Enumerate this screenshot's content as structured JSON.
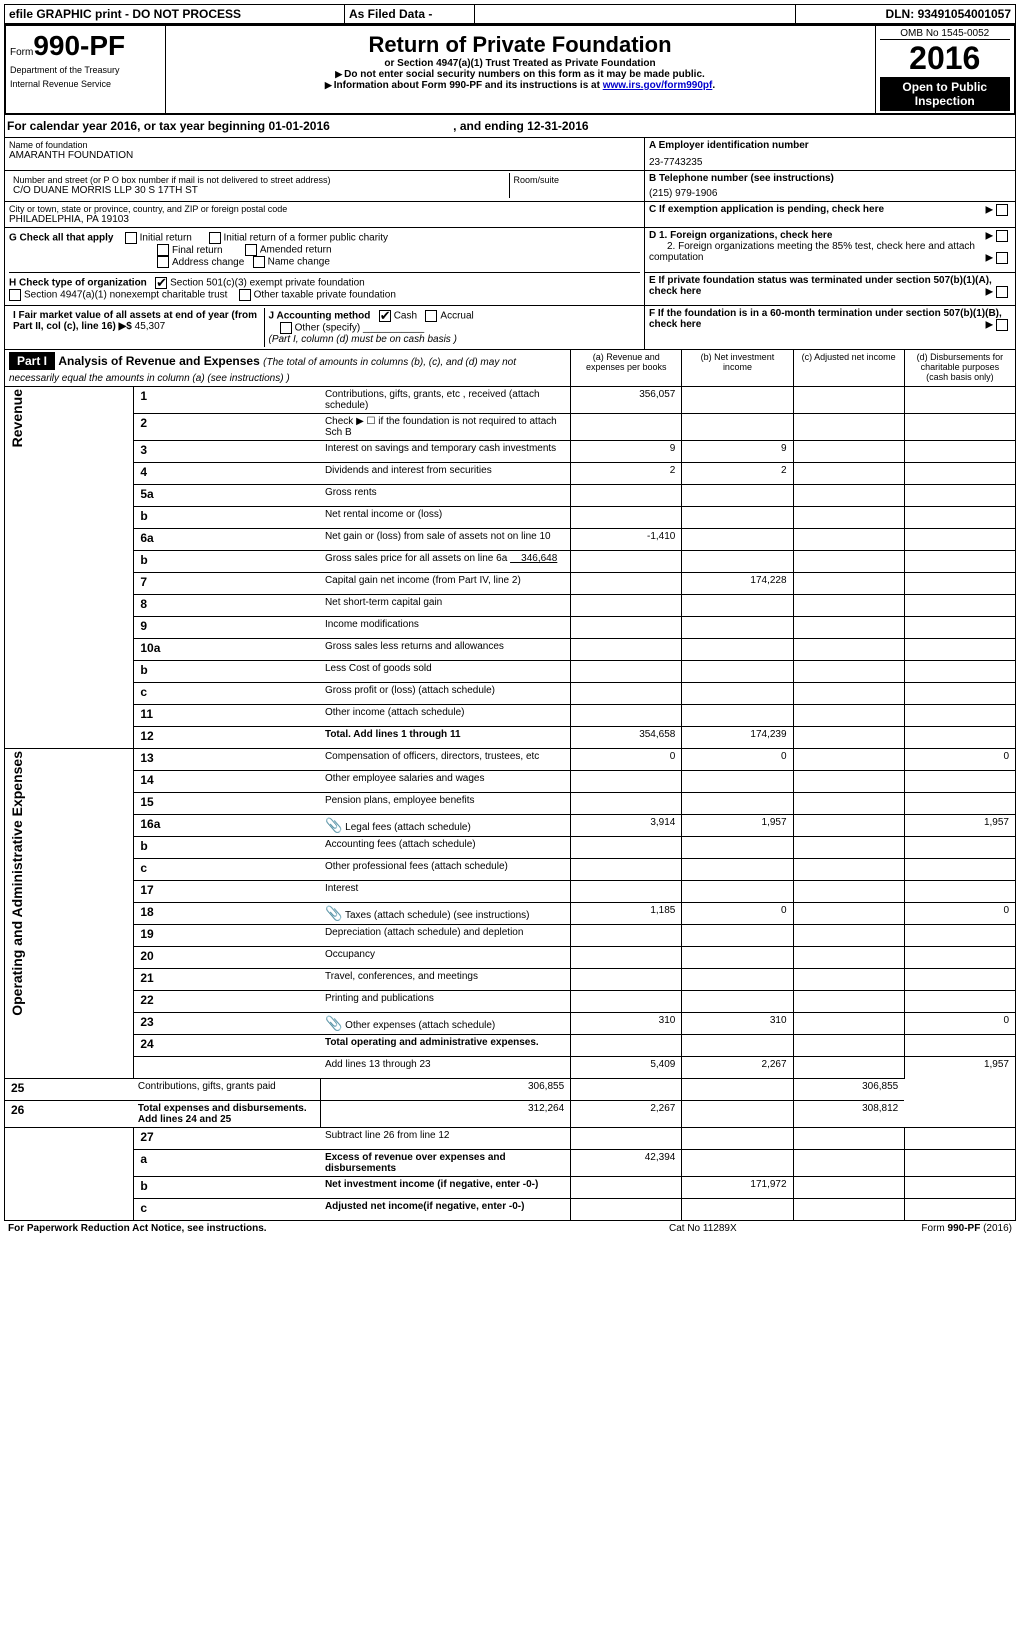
{
  "topbar": {
    "efile": "efile GRAPHIC print - DO NOT PROCESS",
    "asfiled": "As Filed Data -",
    "dln_label": "DLN:",
    "dln": "93491054001057"
  },
  "header": {
    "form_prefix": "Form",
    "form_no": "990-PF",
    "dept": "Department of the Treasury",
    "irs": "Internal Revenue Service",
    "title": "Return of Private Foundation",
    "subtitle": "or Section 4947(a)(1) Trust Treated as Private Foundation",
    "warn1": "Do not enter social security numbers on this form as it may be made public.",
    "warn2_pre": "Information about Form 990-PF and its instructions is at ",
    "warn2_link": "www.irs.gov/form990pf",
    "omb": "OMB No 1545-0052",
    "year": "2016",
    "open": "Open to Public Inspection"
  },
  "cal": {
    "text": "For calendar year 2016, or tax year beginning 01-01-2016",
    "end": ", and ending 12-31-2016"
  },
  "entity": {
    "name_label": "Name of foundation",
    "name": "AMARANTH FOUNDATION",
    "street_label": "Number and street (or P O  box number if mail is not delivered to street address)",
    "room_label": "Room/suite",
    "street": "C/O DUANE MORRIS LLP 30 S 17TH ST",
    "city_label": "City or town, state or province, country, and ZIP or foreign postal code",
    "city": "PHILADELPHIA, PA  19103",
    "a_label": "A Employer identification number",
    "ein": "23-7743235",
    "b_label": "B Telephone number (see instructions)",
    "phone": "(215) 979-1906",
    "c_label": "C If exemption application is pending, check here"
  },
  "g": {
    "label": "G Check all that apply",
    "initial": "Initial return",
    "initial_former": "Initial return of a former public charity",
    "final": "Final return",
    "amended": "Amended return",
    "addr": "Address change",
    "namechg": "Name change"
  },
  "h": {
    "label": "H Check type of organization",
    "c3": "Section 501(c)(3) exempt private foundation",
    "trust": "Section 4947(a)(1) nonexempt charitable trust",
    "other": "Other taxable private foundation"
  },
  "d": {
    "d1": "D 1. Foreign organizations, check here",
    "d2": "2. Foreign organizations meeting the 85% test, check here and attach computation"
  },
  "e": "E  If private foundation status was terminated under section 507(b)(1)(A), check here",
  "f": "F  If the foundation is in a 60-month termination under section 507(b)(1)(B), check here",
  "i": {
    "label": "I Fair market value of all assets at end of year (from Part II, col  (c), line 16)",
    "val_prefix": "▶$",
    "val": "45,307"
  },
  "j": {
    "label": "J Accounting method",
    "cash": "Cash",
    "accrual": "Accrual",
    "other": "Other (specify)",
    "note": "(Part I, column (d) must be on cash basis )"
  },
  "part1": {
    "hdr": "Part I",
    "title": "Analysis of Revenue and Expenses",
    "note": "(The total of amounts in columns (b), (c), and (d) may not necessarily equal the amounts in column (a) (see instructions) )",
    "col_a": "(a)  Revenue and expenses per books",
    "col_b": "(b)  Net investment income",
    "col_c": "(c)  Adjusted net income",
    "col_d": "(d)  Disbursements for charitable purposes (cash basis only)"
  },
  "side": {
    "rev": "Revenue",
    "exp": "Operating and Administrative Expenses"
  },
  "lines": {
    "l1": {
      "n": "1",
      "t": "Contributions, gifts, grants, etc , received (attach schedule)",
      "a": "356,057"
    },
    "l2": {
      "n": "2",
      "t": "Check ▶ ☐  if the foundation is not required to attach Sch  B"
    },
    "l3": {
      "n": "3",
      "t": "Interest on savings and temporary cash investments",
      "a": "9",
      "b": "9"
    },
    "l4": {
      "n": "4",
      "t": "Dividends and interest from securities",
      "a": "2",
      "b": "2"
    },
    "l5a": {
      "n": "5a",
      "t": "Gross rents"
    },
    "l5b": {
      "n": "b",
      "t": "Net rental income or (loss)"
    },
    "l6a": {
      "n": "6a",
      "t": "Net gain or (loss) from sale of assets not on line 10",
      "a": "-1,410"
    },
    "l6b": {
      "n": "b",
      "t": "Gross sales price for all assets on line 6a",
      "inline": "346,648"
    },
    "l7": {
      "n": "7",
      "t": "Capital gain net income (from Part IV, line 2)",
      "b": "174,228"
    },
    "l8": {
      "n": "8",
      "t": "Net short-term capital gain"
    },
    "l9": {
      "n": "9",
      "t": "Income modifications"
    },
    "l10a": {
      "n": "10a",
      "t": "Gross sales less returns and allowances"
    },
    "l10b": {
      "n": "b",
      "t": "Less  Cost of goods sold"
    },
    "l10c": {
      "n": "c",
      "t": "Gross profit or (loss) (attach schedule)"
    },
    "l11": {
      "n": "11",
      "t": "Other income (attach schedule)"
    },
    "l12": {
      "n": "12",
      "t": "Total. Add lines 1 through 11",
      "a": "354,658",
      "b": "174,239",
      "bold": true
    },
    "l13": {
      "n": "13",
      "t": "Compensation of officers, directors, trustees, etc",
      "a": "0",
      "b": "0",
      "d": "0"
    },
    "l14": {
      "n": "14",
      "t": "Other employee salaries and wages"
    },
    "l15": {
      "n": "15",
      "t": "Pension plans, employee benefits"
    },
    "l16a": {
      "n": "16a",
      "t": "Legal fees (attach schedule)",
      "icon": true,
      "a": "3,914",
      "b": "1,957",
      "d": "1,957"
    },
    "l16b": {
      "n": "b",
      "t": "Accounting fees (attach schedule)"
    },
    "l16c": {
      "n": "c",
      "t": "Other professional fees (attach schedule)"
    },
    "l17": {
      "n": "17",
      "t": "Interest"
    },
    "l18": {
      "n": "18",
      "t": "Taxes (attach schedule) (see instructions)",
      "icon": true,
      "a": "1,185",
      "b": "0",
      "d": "0"
    },
    "l19": {
      "n": "19",
      "t": "Depreciation (attach schedule) and depletion"
    },
    "l20": {
      "n": "20",
      "t": "Occupancy"
    },
    "l21": {
      "n": "21",
      "t": "Travel, conferences, and meetings"
    },
    "l22": {
      "n": "22",
      "t": "Printing and publications"
    },
    "l23": {
      "n": "23",
      "t": "Other expenses (attach schedule)",
      "icon": true,
      "a": "310",
      "b": "310",
      "d": "0"
    },
    "l24": {
      "n": "24",
      "t": "Total operating and administrative expenses.",
      "bold": true
    },
    "l24b": {
      "n": "",
      "t": "Add lines 13 through 23",
      "a": "5,409",
      "b": "2,267",
      "d": "1,957"
    },
    "l25": {
      "n": "25",
      "t": "Contributions, gifts, grants paid",
      "a": "306,855",
      "d": "306,855"
    },
    "l26": {
      "n": "26",
      "t": "Total expenses and disbursements. Add lines 24 and 25",
      "a": "312,264",
      "b": "2,267",
      "d": "308,812",
      "bold": true
    },
    "l27": {
      "n": "27",
      "t": "Subtract line 26 from line 12"
    },
    "l27a": {
      "n": "a",
      "t": "Excess of revenue over expenses and disbursements",
      "a": "42,394",
      "bold": true
    },
    "l27b": {
      "n": "b",
      "t": "Net investment income (if negative, enter -0-)",
      "b": "171,972",
      "bold": true
    },
    "l27c": {
      "n": "c",
      "t": "Adjusted net income(if negative, enter -0-)",
      "bold": true
    }
  },
  "footer": {
    "left": "For Paperwork Reduction Act Notice, see instructions.",
    "mid": "Cat  No  11289X",
    "right": "Form 990-PF (2016)"
  }
}
